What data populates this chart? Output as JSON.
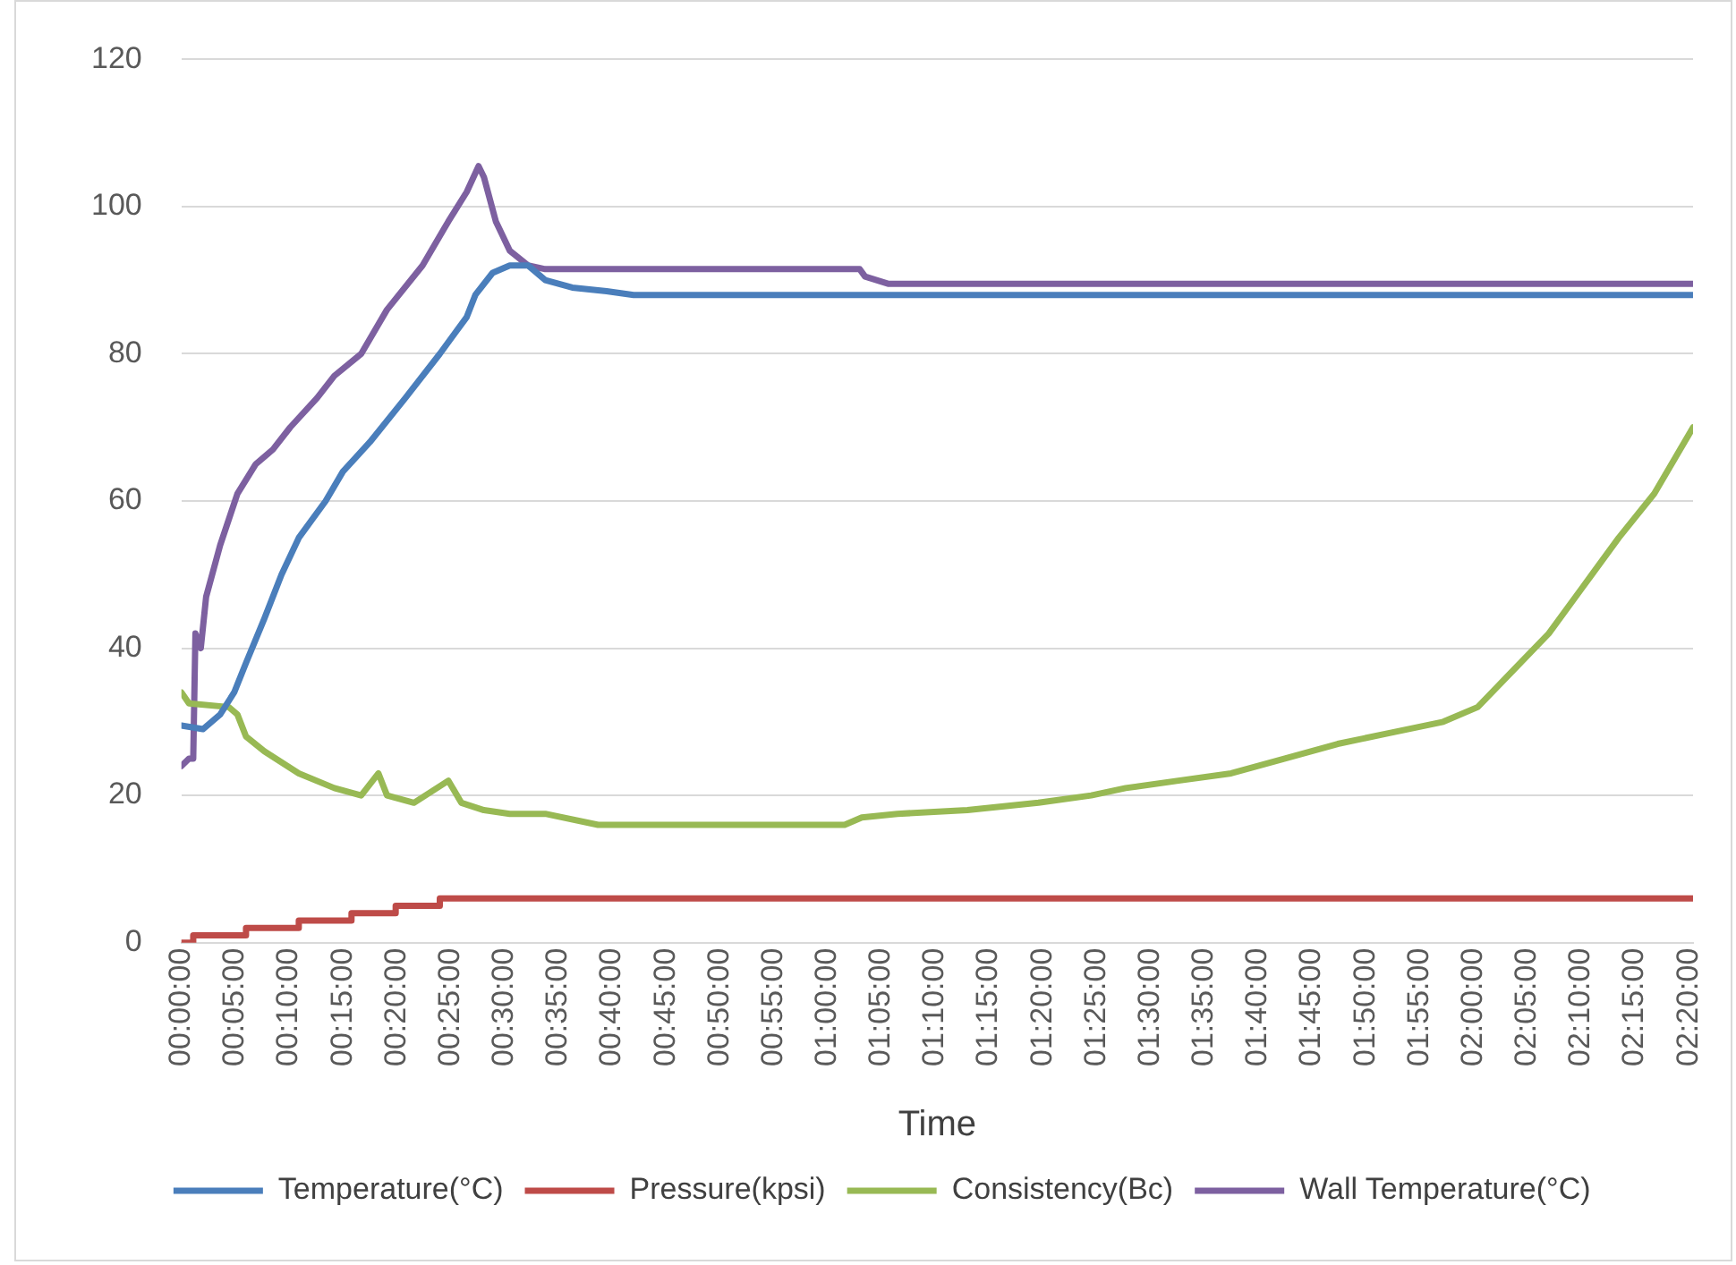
{
  "chart_data": {
    "type": "line",
    "xlabel": "Time",
    "xlim": [
      0,
      2.34
    ],
    "ylim": [
      0,
      120
    ],
    "yticks": [
      0,
      20,
      40,
      60,
      80,
      100,
      120
    ],
    "xticks": [
      {
        "value": 0,
        "label": "00:00:00"
      },
      {
        "value": 0.0833,
        "label": "00:05:00"
      },
      {
        "value": 0.1667,
        "label": "00:10:00"
      },
      {
        "value": 0.25,
        "label": "00:15:00"
      },
      {
        "value": 0.3333,
        "label": "00:20:00"
      },
      {
        "value": 0.4167,
        "label": "00:25:00"
      },
      {
        "value": 0.5,
        "label": "00:30:00"
      },
      {
        "value": 0.5833,
        "label": "00:35:00"
      },
      {
        "value": 0.6667,
        "label": "00:40:00"
      },
      {
        "value": 0.75,
        "label": "00:45:00"
      },
      {
        "value": 0.8333,
        "label": "00:50:00"
      },
      {
        "value": 0.9167,
        "label": "00:55:00"
      },
      {
        "value": 1,
        "label": "01:00:00"
      },
      {
        "value": 1.0833,
        "label": "01:05:00"
      },
      {
        "value": 1.1667,
        "label": "01:10:00"
      },
      {
        "value": 1.25,
        "label": "01:15:00"
      },
      {
        "value": 1.3333,
        "label": "01:20:00"
      },
      {
        "value": 1.4167,
        "label": "01:25:00"
      },
      {
        "value": 1.5,
        "label": "01:30:00"
      },
      {
        "value": 1.5833,
        "label": "01:35:00"
      },
      {
        "value": 1.6667,
        "label": "01:40:00"
      },
      {
        "value": 1.75,
        "label": "01:45:00"
      },
      {
        "value": 1.8333,
        "label": "01:50:00"
      },
      {
        "value": 1.9167,
        "label": "01:55:00"
      },
      {
        "value": 2,
        "label": "02:00:00"
      },
      {
        "value": 2.0833,
        "label": "02:05:00"
      },
      {
        "value": 2.1667,
        "label": "02:10:00"
      },
      {
        "value": 2.25,
        "label": "02:15:00"
      },
      {
        "value": 2.3333,
        "label": "02:20:00"
      }
    ],
    "grid": "y",
    "legend": "bottom",
    "marker": "none",
    "series": [
      {
        "name": "Temperature(°C)",
        "color": "#4a7ebb",
        "x": [
          0,
          0.0333,
          0.06,
          0.0817,
          0.1,
          0.1283,
          0.155,
          0.1817,
          0.2233,
          0.25,
          0.2917,
          0.3467,
          0.4,
          0.4417,
          0.455,
          0.4817,
          0.5083,
          0.5367,
          0.5633,
          0.605,
          0.6583,
          0.7,
          2.34
        ],
        "values": [
          29.5,
          29,
          31,
          34,
          38,
          44,
          50,
          55,
          60,
          64,
          68,
          74,
          80,
          85,
          88,
          91,
          92,
          92,
          90,
          89,
          88.5,
          88,
          88
        ]
      },
      {
        "name": "Pressure(kpsi)",
        "type": "step",
        "color": "#be4b48",
        "x": [
          0,
          0.0183,
          0.1,
          0.1817,
          0.2633,
          0.3317,
          0.4,
          2.34
        ],
        "values": [
          0,
          1,
          2,
          3,
          4,
          5,
          6,
          6
        ]
      },
      {
        "name": "Consistency(Bc)",
        "color": "#98b954",
        "x": [
          0,
          0.0117,
          0.0733,
          0.0867,
          0.1,
          0.1283,
          0.1817,
          0.2367,
          0.2783,
          0.305,
          0.3183,
          0.36,
          0.4133,
          0.4333,
          0.4683,
          0.5083,
          0.5633,
          0.645,
          0.8333,
          1.0267,
          1.0533,
          1.1083,
          1.2167,
          1.3267,
          1.4083,
          1.4617,
          1.5433,
          1.625,
          1.7083,
          1.79,
          1.8717,
          1.9533,
          2.0067,
          2.0617,
          2.1167,
          2.1667,
          2.225,
          2.28,
          2.34
        ],
        "values": [
          34,
          32.5,
          32,
          31,
          28,
          26,
          23,
          21,
          20,
          23,
          20,
          19,
          22,
          19,
          18,
          17.5,
          17.5,
          16,
          16,
          16,
          17,
          17.5,
          18,
          19,
          20,
          21,
          22,
          23,
          25,
          27,
          28.5,
          30,
          32,
          37,
          42,
          48,
          55,
          61,
          70
        ]
      },
      {
        "name": "Wall Temperature(°C)",
        "color": "#7d60a0",
        "x": [
          0,
          0.0117,
          0.0183,
          0.0217,
          0.03,
          0.0383,
          0.06,
          0.0867,
          0.115,
          0.1417,
          0.1683,
          0.21,
          0.2367,
          0.2783,
          0.3183,
          0.3733,
          0.4133,
          0.4417,
          0.46,
          0.4683,
          0.4867,
          0.5083,
          0.5367,
          0.5633,
          1.05,
          1.0583,
          1.095,
          2.34
        ],
        "values": [
          24,
          25,
          25,
          42,
          40,
          47,
          54,
          61,
          65,
          67,
          70,
          74,
          77,
          80,
          86,
          92,
          98,
          102,
          105.5,
          104,
          98,
          94,
          92,
          91.5,
          91.5,
          90.5,
          89.5,
          89.5
        ]
      }
    ]
  }
}
